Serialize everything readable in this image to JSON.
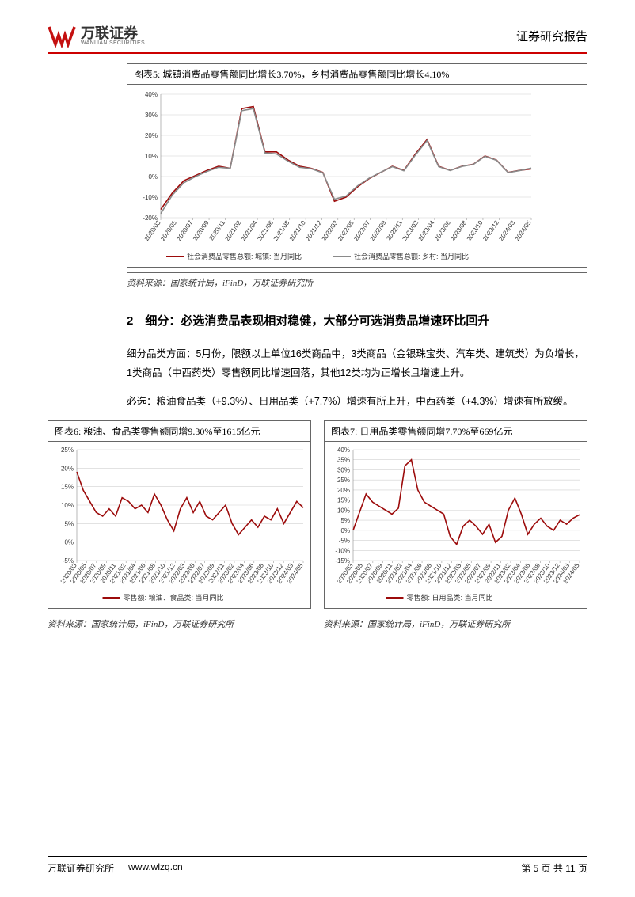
{
  "header": {
    "logo_zh": "万联证券",
    "logo_en": "WANLIAN SECURITIES",
    "report_type": "证券研究报告"
  },
  "chart5": {
    "type": "line",
    "title": "图表5:  城镇消费品零售额同比增长3.70%，乡村消费品零售额同比增长4.10%",
    "source": "资料来源：国家统计局，iFinD，万联证券研究所",
    "legend1": "社会消费品零售总额: 城镇: 当月同比",
    "legend2": "社会消费品零售总额: 乡村: 当月同比",
    "ylabel_fmt": "%",
    "ylim": [
      -20,
      40
    ],
    "ytick_step": 10,
    "xticks": [
      "2020/03",
      "2020/05",
      "2020/07",
      "2020/09",
      "2020/11",
      "2021/02",
      "2021/04",
      "2021/06",
      "2021/08",
      "2021/10",
      "2021/12",
      "2022/03",
      "2022/05",
      "2022/07",
      "2022/09",
      "2022/11",
      "2023/02",
      "2023/04",
      "2023/06",
      "2023/08",
      "2023/10",
      "2023/12",
      "2024/03",
      "2024/05"
    ],
    "series1_color": "#9c0b0b",
    "series2_color": "#8a8a8a",
    "series1": [
      -16,
      -8,
      -2,
      0.5,
      3,
      5,
      4,
      33,
      34,
      12,
      12,
      8,
      5,
      4,
      2,
      -12,
      -10,
      -5,
      -1,
      2,
      5,
      3,
      11,
      18,
      5,
      3,
      5,
      6,
      10,
      8,
      2,
      3,
      3.7
    ],
    "series2": [
      -18,
      -9,
      -3,
      0,
      2.5,
      4.5,
      4,
      32,
      33,
      11.5,
      11,
      7.5,
      4.5,
      3.8,
      1.8,
      -11,
      -9.5,
      -4.5,
      -0.8,
      2.1,
      4.8,
      2.8,
      10.5,
      17.5,
      4.8,
      2.9,
      4.9,
      5.9,
      9.8,
      7.9,
      1.9,
      2.9,
      4.1
    ],
    "line_width": 1.6,
    "grid_color": "#d0d0d0",
    "background_color": "#ffffff"
  },
  "section2": {
    "heading": "2　细分：必选消费品表现相对稳健，大部分可选消费品增速环比回升",
    "para1": "细分品类方面：5月份，限额以上单位16类商品中，3类商品（金银珠宝类、汽车类、建筑类）为负增长，1类商品（中西药类）零售额同比增速回落，其他12类均为正增长且增速上升。",
    "para2": "必选：粮油食品类（+9.3%）、日用品类（+7.7%）增速有所上升，中西药类（+4.3%）增速有所放缓。"
  },
  "chart6": {
    "type": "line",
    "title": "图表6: 粮油、食品类零售额同增9.30%至1615亿元",
    "source": "资料来源：国家统计局，iFinD，万联证券研究所",
    "legend": "零售额: 粮油、食品类: 当月同比",
    "ylim": [
      -5,
      25
    ],
    "ytick_step": 5,
    "xticks": [
      "2020/03",
      "2020/05",
      "2020/07",
      "2020/09",
      "2020/11",
      "2021/02",
      "2021/04",
      "2021/06",
      "2021/08",
      "2021/10",
      "2021/12",
      "2022/03",
      "2022/05",
      "2022/07",
      "2022/09",
      "2022/11",
      "2023/02",
      "2023/04",
      "2023/06",
      "2023/08",
      "2023/10",
      "2023/12",
      "2024/03",
      "2024/05"
    ],
    "series_color": "#9c0b0b",
    "series": [
      19,
      14,
      11,
      8,
      7,
      9,
      7,
      12,
      11,
      9,
      10,
      8,
      13,
      10,
      6,
      3,
      9,
      12,
      8,
      11,
      7,
      6,
      8,
      10,
      5,
      2,
      4,
      6,
      4,
      7,
      6,
      9,
      5,
      8,
      11,
      9.3
    ],
    "line_width": 1.6,
    "grid_color": "#d0d0d0"
  },
  "chart7": {
    "type": "line",
    "title": "图表7: 日用品类零售额同增7.70%至669亿元",
    "source": "资料来源：国家统计局，iFinD，万联证券研究所",
    "legend": "零售额: 日用品类: 当月同比",
    "ylim": [
      -15,
      40
    ],
    "ytick_step": 5,
    "xticks": [
      "2020/03",
      "2020/05",
      "2020/07",
      "2020/09",
      "2020/11",
      "2021/02",
      "2021/04",
      "2021/06",
      "2021/08",
      "2021/10",
      "2021/12",
      "2022/03",
      "2022/05",
      "2022/07",
      "2022/09",
      "2022/11",
      "2023/02",
      "2023/04",
      "2023/06",
      "2023/08",
      "2023/10",
      "2023/12",
      "2024/03",
      "2024/05"
    ],
    "series_color": "#9c0b0b",
    "series": [
      0,
      9,
      18,
      14,
      12,
      10,
      8,
      11,
      32,
      35,
      20,
      14,
      12,
      10,
      8,
      -3,
      -7,
      2,
      5,
      2,
      -2,
      3,
      -6,
      -3,
      10,
      16,
      8,
      -2,
      3,
      6,
      2,
      0,
      5,
      3,
      6,
      7.7
    ],
    "line_width": 1.6,
    "grid_color": "#d0d0d0"
  },
  "footer": {
    "org": "万联证券研究所",
    "url": "www.wlzq.cn",
    "page": "第 5 页 共 11 页"
  }
}
